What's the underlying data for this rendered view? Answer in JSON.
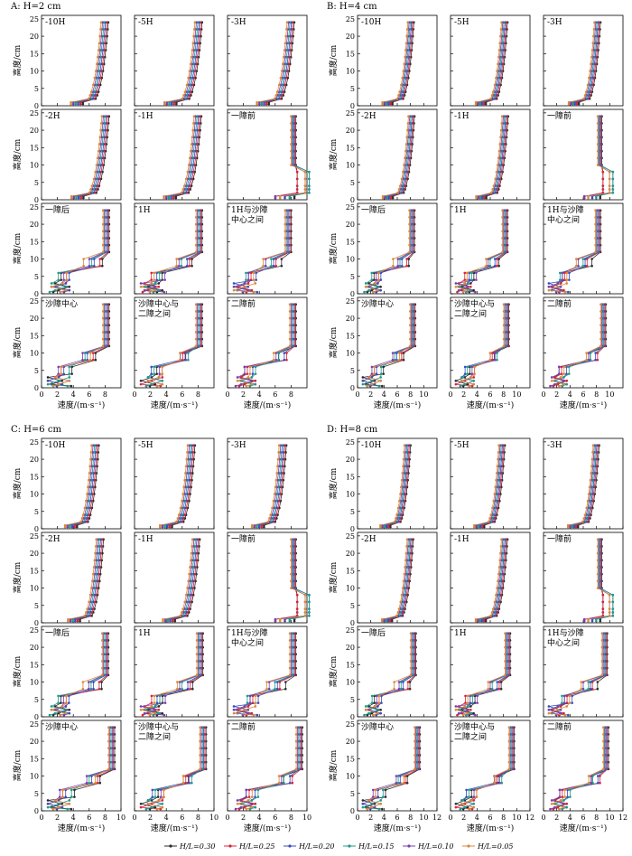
{
  "legend": [
    {
      "label": "H/L=0.30",
      "color": "#2b2b2b"
    },
    {
      "label": "H/L=0.25",
      "color": "#d8243a"
    },
    {
      "label": "H/L=0.20",
      "color": "#3b4bbf"
    },
    {
      "label": "H/L=0.15",
      "color": "#1f9a8a"
    },
    {
      "label": "H/L=0.10",
      "color": "#7a3fb0"
    },
    {
      "label": "H/L=0.05",
      "color": "#d9893a"
    }
  ],
  "chart_data": {
    "type": "line",
    "description_free": true,
    "ylabel": "高度/cm",
    "xlabel": "速度/(m·s⁻¹)",
    "yticks": [
      0,
      5,
      10,
      15,
      20,
      25
    ],
    "ylim": [
      0,
      26
    ],
    "panels": [
      {
        "id": "A",
        "title": "A: H=2 cm",
        "xlim": [
          0,
          10
        ],
        "xticks": [
          0,
          2,
          4,
          6,
          8
        ],
        "subplots": [
          {
            "label": "-10H",
            "profile": "smooth",
            "umax": 8.4
          },
          {
            "label": "-5H",
            "profile": "smooth",
            "umax": 8.5
          },
          {
            "label": "-3H",
            "profile": "smooth",
            "umax": 8.4
          },
          {
            "label": "-2H",
            "profile": "smooth",
            "umax": 8.5
          },
          {
            "label": "-1H",
            "profile": "smooth",
            "umax": 8.4
          },
          {
            "label": "一障前",
            "profile": "bulge",
            "umax": 8.6
          },
          {
            "label": "一障后",
            "profile": "sheltered",
            "umax": 8.5
          },
          {
            "label": "1H",
            "profile": "sheltered",
            "umax": 8.5
          },
          {
            "label": "1H与沙障\n中心之间",
            "profile": "sheltered",
            "umax": 8.0
          },
          {
            "label": "沙障中心",
            "profile": "sheltered",
            "umax": 8.5
          },
          {
            "label": "沙障中心与\n二障之间",
            "profile": "sheltered",
            "umax": 8.5
          },
          {
            "label": "二障前",
            "profile": "sheltered",
            "umax": 8.6
          }
        ]
      },
      {
        "id": "B",
        "title": "B: H=4 cm",
        "xlim": [
          0,
          12
        ],
        "xticks": [
          0,
          2,
          4,
          6,
          8,
          10
        ],
        "subplots": [
          {
            "label": "-10H",
            "profile": "smooth",
            "umax": 8.5
          },
          {
            "label": "-5H",
            "profile": "smooth",
            "umax": 8.6
          },
          {
            "label": "-3H",
            "profile": "smooth",
            "umax": 8.6
          },
          {
            "label": "-2H",
            "profile": "smooth",
            "umax": 8.6
          },
          {
            "label": "-1H",
            "profile": "smooth",
            "umax": 8.7
          },
          {
            "label": "一障前",
            "profile": "bulge",
            "umax": 8.8
          },
          {
            "label": "一障后",
            "profile": "sheltered",
            "umax": 8.6
          },
          {
            "label": "1H",
            "profile": "sheltered",
            "umax": 8.6
          },
          {
            "label": "1H与沙障\n中心之间",
            "profile": "sheltered",
            "umax": 8.6
          },
          {
            "label": "沙障中心",
            "profile": "sheltered",
            "umax": 8.7
          },
          {
            "label": "沙障中心与\n二障之间",
            "profile": "sheltered",
            "umax": 8.8
          },
          {
            "label": "二障前",
            "profile": "sheltered",
            "umax": 9.4
          }
        ]
      },
      {
        "id": "C",
        "title": "C: H=6 cm",
        "xlim": [
          0,
          10
        ],
        "xticks": [
          0,
          2,
          4,
          6,
          8,
          10
        ],
        "subplots": [
          {
            "label": "-10H",
            "profile": "smooth",
            "umax": 7.2
          },
          {
            "label": "-5H",
            "profile": "smooth",
            "umax": 7.6
          },
          {
            "label": "-3H",
            "profile": "smooth",
            "umax": 7.4
          },
          {
            "label": "-2H",
            "profile": "smooth",
            "umax": 7.8
          },
          {
            "label": "-1H",
            "profile": "smooth",
            "umax": 8.2
          },
          {
            "label": "一障前",
            "profile": "bulge",
            "umax": 8.6
          },
          {
            "label": "一障后",
            "profile": "sheltered",
            "umax": 8.4
          },
          {
            "label": "1H",
            "profile": "sheltered",
            "umax": 8.6
          },
          {
            "label": "1H与沙障\n中心之间",
            "profile": "sheltered",
            "umax": 8.6
          },
          {
            "label": "沙障中心",
            "profile": "sheltered",
            "umax": 9.2
          },
          {
            "label": "沙障中心与\n二障之间",
            "profile": "sheltered",
            "umax": 9.0
          },
          {
            "label": "二障前",
            "profile": "sheltered",
            "umax": 9.4
          }
        ]
      },
      {
        "id": "D",
        "title": "D: H=8 cm",
        "xlim": [
          0,
          12
        ],
        "xticks": [
          0,
          2,
          4,
          6,
          8,
          10,
          12
        ],
        "subplots": [
          {
            "label": "-10H",
            "profile": "smooth",
            "umax": 8.0
          },
          {
            "label": "-5H",
            "profile": "smooth",
            "umax": 8.2
          },
          {
            "label": "-3H",
            "profile": "smooth",
            "umax": 8.4
          },
          {
            "label": "-2H",
            "profile": "smooth",
            "umax": 8.4
          },
          {
            "label": "-1H",
            "profile": "smooth",
            "umax": 8.6
          },
          {
            "label": "一障前",
            "profile": "bulge",
            "umax": 8.8
          },
          {
            "label": "一障后",
            "profile": "sheltered",
            "umax": 8.8
          },
          {
            "label": "1H",
            "profile": "sheltered",
            "umax": 9.0
          },
          {
            "label": "1H与沙障\n中心之间",
            "profile": "sheltered",
            "umax": 9.6
          },
          {
            "label": "沙障中心",
            "profile": "sheltered",
            "umax": 9.4
          },
          {
            "label": "沙障中心与\n二障之间",
            "profile": "sheltered",
            "umax": 9.6
          },
          {
            "label": "二障前",
            "profile": "sheltered",
            "umax": 9.8
          }
        ]
      }
    ]
  }
}
